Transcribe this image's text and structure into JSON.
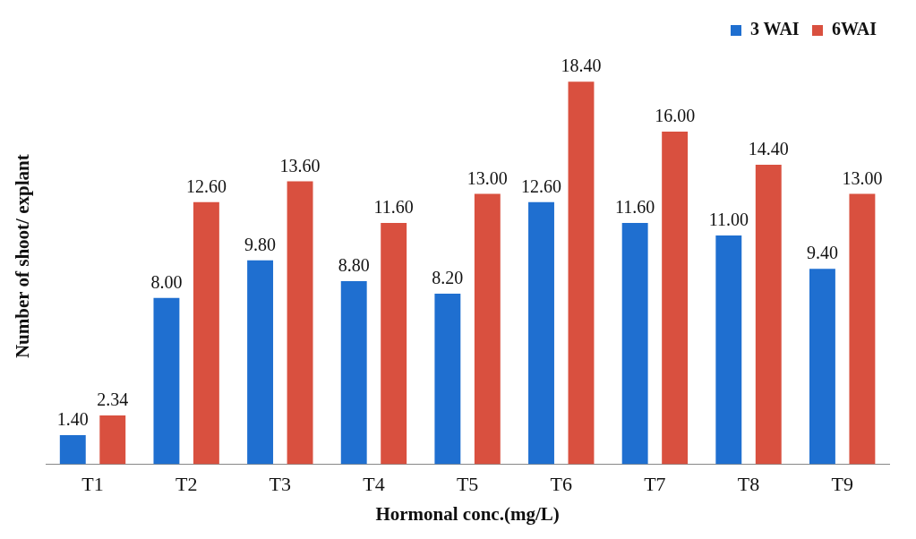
{
  "chart_data": {
    "type": "bar",
    "xlabel": "Hormonal conc.(mg/L)",
    "ylabel": "Number of shoot/ explant",
    "categories": [
      "T1",
      "T2",
      "T3",
      "T4",
      "T5",
      "T6",
      "T7",
      "T8",
      "T9"
    ],
    "series": [
      {
        "name": "3 WAI",
        "color": "#1f6fd0",
        "values": [
          1.4,
          8,
          9.8,
          8.8,
          8.2,
          12.6,
          11.6,
          11,
          9.4
        ],
        "value_labels": [
          "1.40",
          "8.00",
          "9.80",
          "8.80",
          "8.20",
          "12.60",
          "11.60",
          "11.00",
          "9.40"
        ]
      },
      {
        "name": "6WAI",
        "color": "#d9503f",
        "values": [
          2.34,
          12.6,
          13.6,
          11.6,
          13,
          18.4,
          16,
          14.4,
          13
        ],
        "value_labels": [
          "2.34",
          "12.60",
          "13.60",
          "11.60",
          "13.00",
          "18.40",
          "16.00",
          "14.40",
          "13.00"
        ]
      }
    ],
    "tick_labels": "x",
    "grid": false,
    "legend": "top right"
  }
}
